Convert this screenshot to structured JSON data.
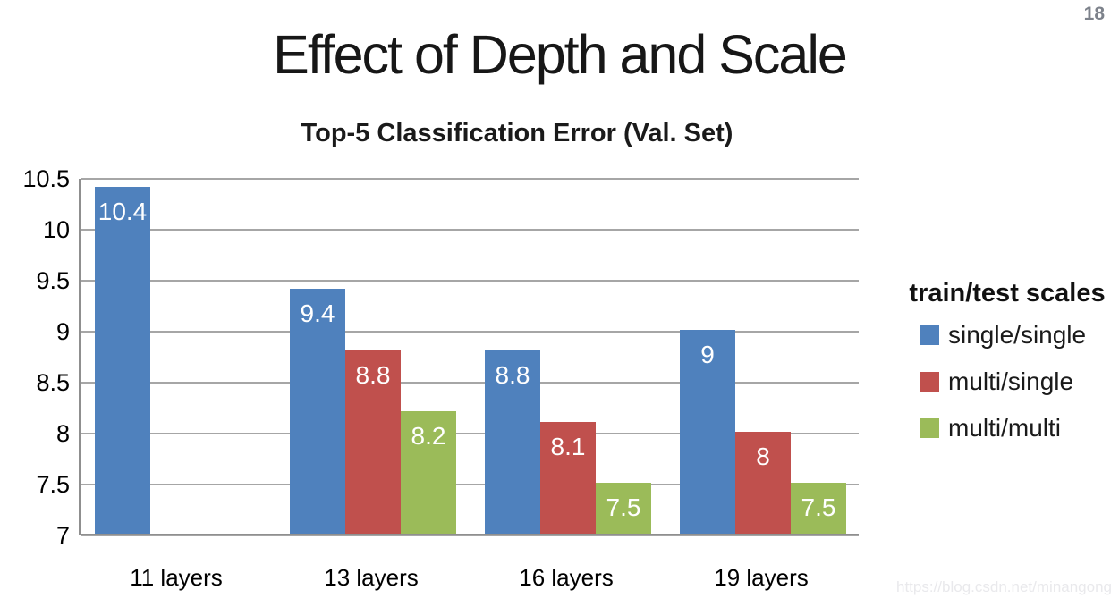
{
  "page_number": "18",
  "slide_title": "Effect of Depth and Scale",
  "watermark": "https://blog.csdn.net/minangong",
  "chart_data": {
    "type": "bar",
    "title": "Top-5 Classification Error (Val. Set)",
    "categories": [
      "11 layers",
      "13 layers",
      "16 layers",
      "19 layers"
    ],
    "series": [
      {
        "name": "single/single",
        "color": "#4F81BD",
        "values": [
          10.4,
          9.4,
          8.8,
          9
        ]
      },
      {
        "name": "multi/single",
        "color": "#C0504D",
        "values": [
          null,
          8.8,
          8.1,
          8
        ]
      },
      {
        "name": "multi/multi",
        "color": "#9BBB59",
        "values": [
          null,
          8.2,
          7.5,
          7.5
        ]
      }
    ],
    "ylim": [
      7,
      10.5
    ],
    "y_ticks": [
      10.5,
      10,
      9.5,
      9,
      8.5,
      8,
      7.5,
      7
    ],
    "grid": true,
    "data_labels": true,
    "legend_title": "train/test scales",
    "legend_position": "right",
    "colors": {
      "gridline": "#a6a6a6",
      "axis": "#8f8f8f",
      "label_text": "#ffffff"
    }
  }
}
